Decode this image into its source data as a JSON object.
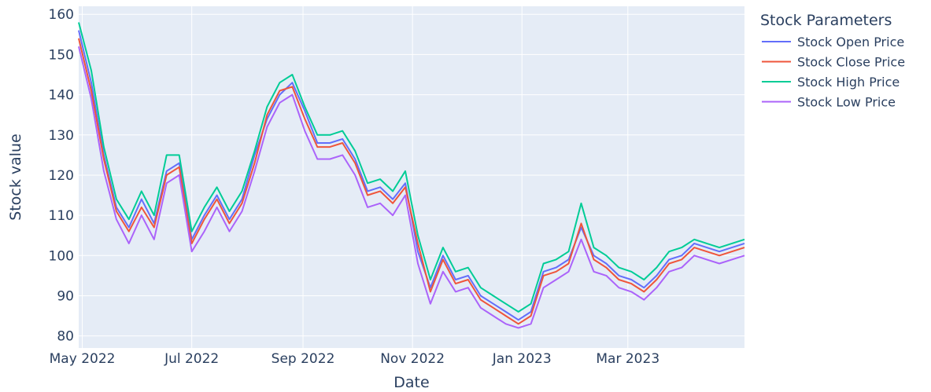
{
  "chart_data": {
    "type": "line",
    "title": "",
    "xlabel": "Date",
    "ylabel": "Stock value",
    "x_range": [
      "2022-04-29",
      "2023-05-05"
    ],
    "ylim": [
      77,
      162
    ],
    "x_ticks": [
      {
        "date": "2022-05-01",
        "label": "May 2022"
      },
      {
        "date": "2022-07-01",
        "label": "Jul 2022"
      },
      {
        "date": "2022-09-01",
        "label": "Sep 2022"
      },
      {
        "date": "2022-11-01",
        "label": "Nov 2022"
      },
      {
        "date": "2023-01-01",
        "label": "Jan 2023"
      },
      {
        "date": "2023-03-01",
        "label": "Mar 2023"
      }
    ],
    "y_ticks": [
      80,
      90,
      100,
      110,
      120,
      130,
      140,
      150,
      160
    ],
    "grid": true,
    "legend": {
      "title": "Stock Parameters",
      "placement": "right"
    },
    "dates": [
      "2022-04-29",
      "2022-05-06",
      "2022-05-13",
      "2022-05-20",
      "2022-05-27",
      "2022-06-03",
      "2022-06-10",
      "2022-06-17",
      "2022-06-24",
      "2022-07-01",
      "2022-07-08",
      "2022-07-15",
      "2022-07-22",
      "2022-07-29",
      "2022-08-05",
      "2022-08-12",
      "2022-08-19",
      "2022-08-26",
      "2022-09-02",
      "2022-09-09",
      "2022-09-16",
      "2022-09-23",
      "2022-09-30",
      "2022-10-07",
      "2022-10-14",
      "2022-10-21",
      "2022-10-28",
      "2022-11-04",
      "2022-11-11",
      "2022-11-18",
      "2022-11-25",
      "2022-12-02",
      "2022-12-09",
      "2022-12-16",
      "2022-12-23",
      "2022-12-30",
      "2023-01-06",
      "2023-01-13",
      "2023-01-20",
      "2023-01-27",
      "2023-02-03",
      "2023-02-10",
      "2023-02-17",
      "2023-02-24",
      "2023-03-03",
      "2023-03-10",
      "2023-03-17",
      "2023-03-24",
      "2023-03-31",
      "2023-04-07",
      "2023-04-14",
      "2023-04-21",
      "2023-04-28",
      "2023-05-05"
    ],
    "series": [
      {
        "name": "Stock Open Price",
        "color": "#636efa",
        "values": [
          156,
          143,
          125,
          112,
          107,
          114,
          108,
          121,
          123,
          104,
          110,
          115,
          109,
          114,
          125,
          134,
          140,
          143,
          136,
          128,
          128,
          129,
          124,
          116,
          117,
          114,
          118,
          101,
          92,
          100,
          94,
          95,
          90,
          88,
          86,
          84,
          86,
          96,
          97,
          99,
          107,
          100,
          98,
          95,
          94,
          92,
          95,
          99,
          100,
          103,
          102,
          101,
          102,
          103
        ]
      },
      {
        "name": "Stock Close Price",
        "color": "#ef553b",
        "values": [
          154,
          141,
          124,
          111,
          106,
          112,
          107,
          120,
          122,
          103,
          109,
          114,
          108,
          113,
          123,
          135,
          141,
          142,
          134,
          127,
          127,
          128,
          123,
          115,
          116,
          113,
          117,
          103,
          91,
          99,
          93,
          94,
          89,
          87,
          85,
          83,
          85,
          95,
          96,
          98,
          108,
          99,
          97,
          94,
          93,
          91,
          94,
          98,
          99,
          102,
          101,
          100,
          101,
          102
        ]
      },
      {
        "name": "Stock High Price",
        "color": "#00cc96",
        "values": [
          158,
          146,
          127,
          114,
          109,
          116,
          110,
          125,
          125,
          106,
          112,
          117,
          111,
          116,
          126,
          137,
          143,
          145,
          137,
          130,
          130,
          131,
          126,
          118,
          119,
          116,
          121,
          105,
          94,
          102,
          96,
          97,
          92,
          90,
          88,
          86,
          88,
          98,
          99,
          101,
          113,
          102,
          100,
          97,
          96,
          94,
          97,
          101,
          102,
          104,
          103,
          102,
          103,
          104
        ]
      },
      {
        "name": "Stock Low Price",
        "color": "#ab63fa",
        "values": [
          152,
          139,
          121,
          109,
          103,
          110,
          104,
          118,
          120,
          101,
          106,
          112,
          106,
          111,
          121,
          132,
          138,
          140,
          131,
          124,
          124,
          125,
          120,
          112,
          113,
          110,
          115,
          98,
          88,
          96,
          91,
          92,
          87,
          85,
          83,
          82,
          83,
          92,
          94,
          96,
          104,
          96,
          95,
          92,
          91,
          89,
          92,
          96,
          97,
          100,
          99,
          98,
          99,
          100
        ]
      }
    ]
  }
}
